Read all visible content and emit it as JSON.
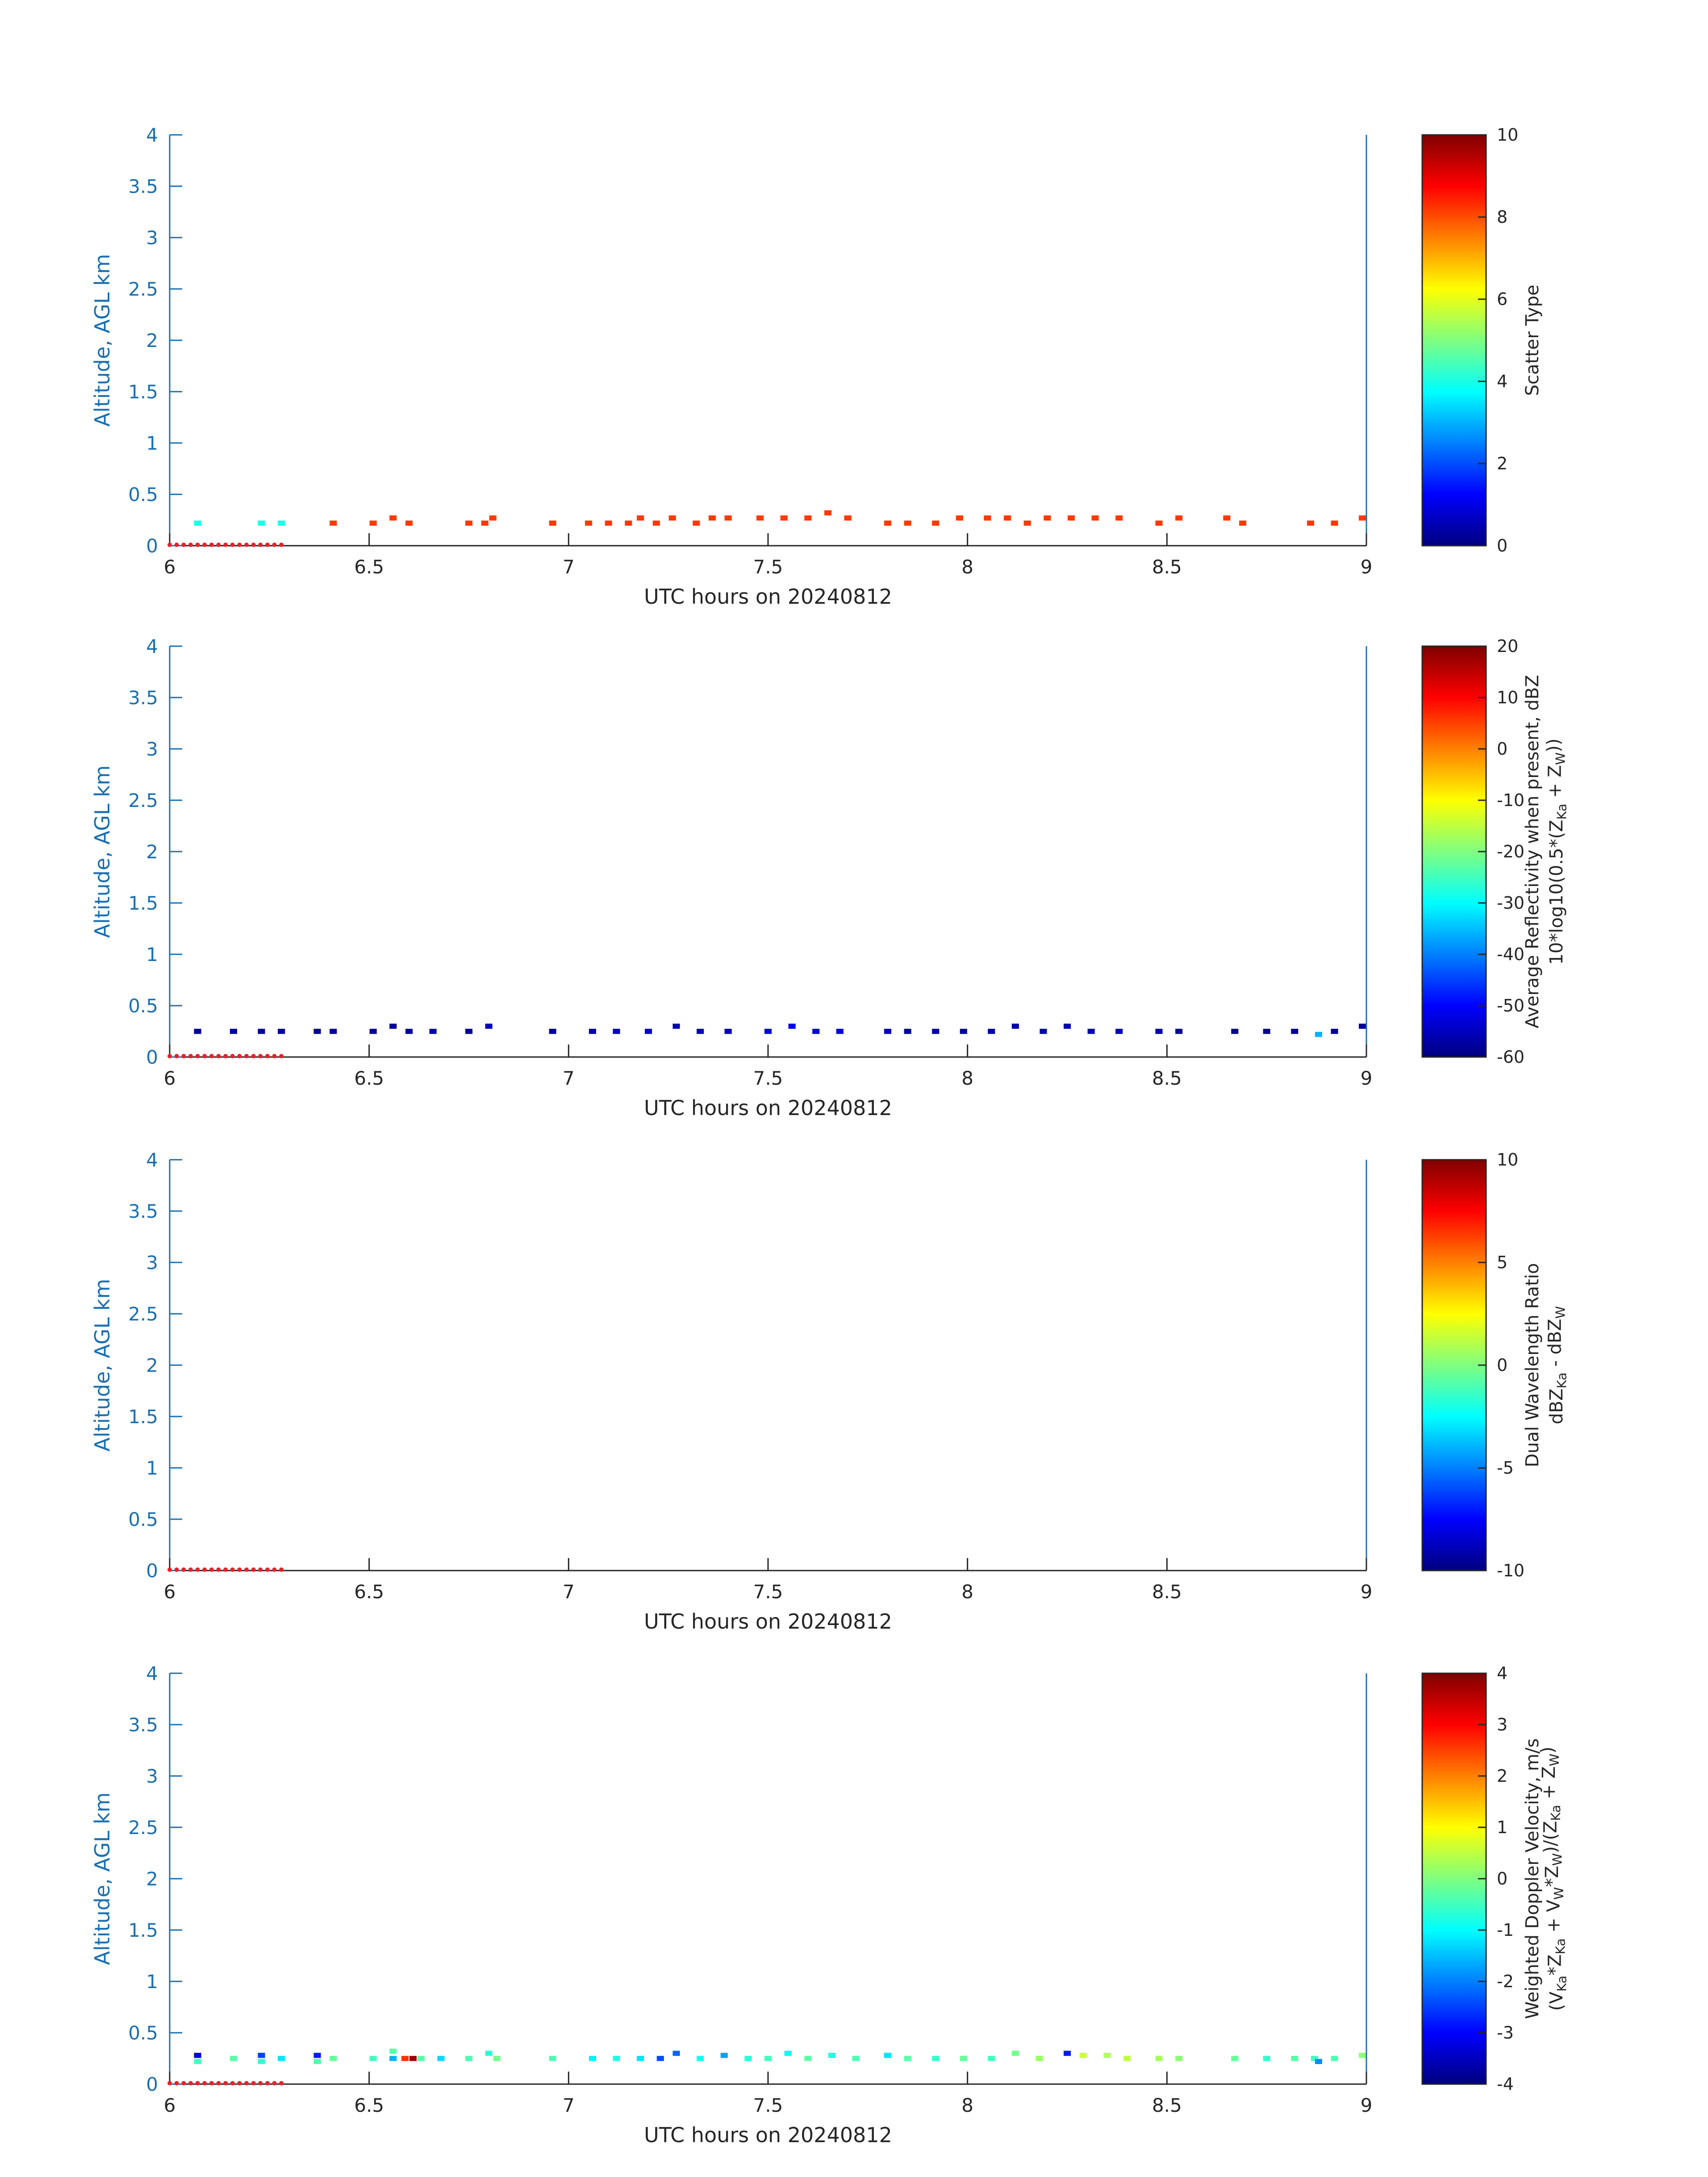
{
  "colors": {
    "y_axis": "#1a6fb0",
    "x_axis": "#262626",
    "ground_marker": "#e8212b",
    "colormap": "jet"
  },
  "chart_data": [
    {
      "type": "heatmap",
      "xlabel": "UTC hours on 20240812",
      "ylabel": "Altitude, AGL km",
      "xlim": [
        6,
        9
      ],
      "ylim": [
        0,
        4
      ],
      "xticks": [
        "6",
        "6.5",
        "7",
        "7.5",
        "8",
        "8.5",
        "9"
      ],
      "yticks": [
        "0",
        "0.5",
        "1",
        "1.5",
        "2",
        "2.5",
        "3",
        "3.5",
        "4"
      ],
      "colorbar": {
        "label_lines": [
          "Scatter Type"
        ],
        "clim": [
          0,
          10
        ],
        "ticks": [
          "0",
          "2",
          "4",
          "6",
          "8",
          "10"
        ]
      },
      "cells_note_units": "x in UTC hours, y in km, value in colorbar units",
      "cells": [
        [
          6.07,
          0.22,
          4
        ],
        [
          6.23,
          0.22,
          4
        ],
        [
          6.28,
          0.22,
          4
        ],
        [
          6.41,
          0.22,
          8.2
        ],
        [
          6.51,
          0.22,
          8.2
        ],
        [
          6.56,
          0.27,
          8.2
        ],
        [
          6.6,
          0.22,
          8.2
        ],
        [
          6.75,
          0.22,
          8.2
        ],
        [
          6.79,
          0.22,
          8.2
        ],
        [
          6.81,
          0.27,
          8.2
        ],
        [
          6.96,
          0.22,
          8.2
        ],
        [
          7.05,
          0.22,
          8.2
        ],
        [
          7.1,
          0.22,
          8.2
        ],
        [
          7.15,
          0.22,
          8.2
        ],
        [
          7.18,
          0.27,
          8.2
        ],
        [
          7.22,
          0.22,
          8.2
        ],
        [
          7.26,
          0.27,
          8.2
        ],
        [
          7.32,
          0.22,
          8.2
        ],
        [
          7.36,
          0.27,
          8.2
        ],
        [
          7.4,
          0.27,
          8.2
        ],
        [
          7.48,
          0.27,
          8.2
        ],
        [
          7.54,
          0.27,
          8.2
        ],
        [
          7.6,
          0.27,
          8.2
        ],
        [
          7.65,
          0.32,
          8.2
        ],
        [
          7.7,
          0.27,
          8.2
        ],
        [
          7.8,
          0.22,
          8.2
        ],
        [
          7.85,
          0.22,
          8.2
        ],
        [
          7.92,
          0.22,
          8.2
        ],
        [
          7.98,
          0.27,
          8.2
        ],
        [
          8.05,
          0.27,
          8.2
        ],
        [
          8.1,
          0.27,
          8.2
        ],
        [
          8.15,
          0.22,
          8.2
        ],
        [
          8.2,
          0.27,
          8.2
        ],
        [
          8.26,
          0.27,
          8.2
        ],
        [
          8.32,
          0.27,
          8.2
        ],
        [
          8.38,
          0.27,
          8.2
        ],
        [
          8.48,
          0.22,
          8.2
        ],
        [
          8.53,
          0.27,
          8.2
        ],
        [
          8.65,
          0.27,
          8.2
        ],
        [
          8.69,
          0.22,
          8.2
        ],
        [
          8.86,
          0.22,
          8.2
        ],
        [
          8.92,
          0.22,
          8.2
        ],
        [
          8.99,
          0.27,
          8.2
        ]
      ]
    },
    {
      "type": "heatmap",
      "xlabel": "UTC hours on 20240812",
      "ylabel": "Altitude, AGL km",
      "xlim": [
        6,
        9
      ],
      "ylim": [
        0,
        4
      ],
      "xticks": [
        "6",
        "6.5",
        "7",
        "7.5",
        "8",
        "8.5",
        "9"
      ],
      "yticks": [
        "0",
        "0.5",
        "1",
        "1.5",
        "2",
        "2.5",
        "3",
        "3.5",
        "4"
      ],
      "colorbar": {
        "label_lines": [
          "Average Reflectivity when present, dBZ",
          "10*log10(0.5*(Z<sub>Ka</sub> + Z<sub>W</sub>))"
        ],
        "clim": [
          -60,
          20
        ],
        "ticks": [
          "-60",
          "-50",
          "-40",
          "-30",
          "-20",
          "-10",
          "0",
          "10",
          "20"
        ]
      },
      "cells_note_units": "x in UTC hours, y in km, value in colorbar units",
      "cells": [
        [
          6.07,
          0.25,
          -58
        ],
        [
          6.16,
          0.25,
          -58
        ],
        [
          6.23,
          0.25,
          -58
        ],
        [
          6.28,
          0.25,
          -58
        ],
        [
          6.37,
          0.25,
          -58
        ],
        [
          6.41,
          0.25,
          -58
        ],
        [
          6.51,
          0.25,
          -58
        ],
        [
          6.56,
          0.3,
          -58
        ],
        [
          6.6,
          0.25,
          -58
        ],
        [
          6.66,
          0.25,
          -56
        ],
        [
          6.75,
          0.25,
          -58
        ],
        [
          6.8,
          0.3,
          -55
        ],
        [
          6.96,
          0.25,
          -58
        ],
        [
          7.06,
          0.25,
          -57
        ],
        [
          7.12,
          0.25,
          -55
        ],
        [
          7.2,
          0.25,
          -54
        ],
        [
          7.27,
          0.3,
          -56
        ],
        [
          7.33,
          0.25,
          -55
        ],
        [
          7.4,
          0.25,
          -56
        ],
        [
          7.5,
          0.25,
          -52
        ],
        [
          7.56,
          0.3,
          -51
        ],
        [
          7.62,
          0.25,
          -52
        ],
        [
          7.68,
          0.25,
          -53
        ],
        [
          7.8,
          0.25,
          -56
        ],
        [
          7.85,
          0.25,
          -57
        ],
        [
          7.92,
          0.25,
          -57
        ],
        [
          7.99,
          0.25,
          -57
        ],
        [
          8.06,
          0.25,
          -57
        ],
        [
          8.12,
          0.3,
          -57
        ],
        [
          8.19,
          0.25,
          -56
        ],
        [
          8.25,
          0.3,
          -56
        ],
        [
          8.31,
          0.25,
          -55
        ],
        [
          8.38,
          0.25,
          -56
        ],
        [
          8.48,
          0.25,
          -57
        ],
        [
          8.53,
          0.25,
          -57
        ],
        [
          8.67,
          0.25,
          -58
        ],
        [
          8.75,
          0.25,
          -58
        ],
        [
          8.82,
          0.25,
          -58
        ],
        [
          8.88,
          0.22,
          -36
        ],
        [
          8.92,
          0.25,
          -58
        ],
        [
          8.99,
          0.3,
          -58
        ]
      ]
    },
    {
      "type": "heatmap",
      "xlabel": "UTC hours on 20240812",
      "ylabel": "Altitude, AGL km",
      "xlim": [
        6,
        9
      ],
      "ylim": [
        0,
        4
      ],
      "xticks": [
        "6",
        "6.5",
        "7",
        "7.5",
        "8",
        "8.5",
        "9"
      ],
      "yticks": [
        "0",
        "0.5",
        "1",
        "1.5",
        "2",
        "2.5",
        "3",
        "3.5",
        "4"
      ],
      "colorbar": {
        "label_lines": [
          "Dual Wavelength Ratio",
          "dBZ<sub>Ka</sub> - dBZ<sub>W</sub>"
        ],
        "clim": [
          -10,
          10
        ],
        "ticks": [
          "-10",
          "-5",
          "0",
          "5",
          "10"
        ]
      },
      "cells_note_units": "x in UTC hours, y in km, value in colorbar units",
      "cells": []
    },
    {
      "type": "heatmap",
      "xlabel": "UTC hours on 20240812",
      "ylabel": "Altitude, AGL km",
      "xlim": [
        6,
        9
      ],
      "ylim": [
        0,
        4
      ],
      "xticks": [
        "6",
        "6.5",
        "7",
        "7.5",
        "8",
        "8.5",
        "9"
      ],
      "yticks": [
        "0",
        "0.5",
        "1",
        "1.5",
        "2",
        "2.5",
        "3",
        "3.5",
        "4"
      ],
      "colorbar": {
        "label_lines": [
          "Weighted Doppler Velocity, m/s",
          "(V<sub>Ka</sub>*Z<sub>Ka</sub> + V<sub>W</sub>*Z<sub>W</sub>)/(Z<sub>Ka</sub> + Z<sub>W</sub>)"
        ],
        "clim": [
          -4,
          4
        ],
        "ticks": [
          "-4",
          "-3",
          "-2",
          "-1",
          "0",
          "1",
          "2",
          "3",
          "4"
        ]
      },
      "cells_note_units": "x in UTC hours, y in km, value in colorbar units",
      "cells": [
        [
          6.07,
          0.28,
          -3.3
        ],
        [
          6.07,
          0.22,
          -0.5
        ],
        [
          6.16,
          0.25,
          -0.3
        ],
        [
          6.23,
          0.28,
          -2.5
        ],
        [
          6.23,
          0.22,
          -0.6
        ],
        [
          6.28,
          0.25,
          -1.2
        ],
        [
          6.37,
          0.28,
          -2.8
        ],
        [
          6.37,
          0.22,
          -0.4
        ],
        [
          6.41,
          0.25,
          -0.2
        ],
        [
          6.51,
          0.25,
          -0.5
        ],
        [
          6.56,
          0.32,
          -0.3
        ],
        [
          6.56,
          0.25,
          -1.6
        ],
        [
          6.59,
          0.25,
          2.6
        ],
        [
          6.61,
          0.25,
          3.8
        ],
        [
          6.63,
          0.25,
          -0.3
        ],
        [
          6.68,
          0.25,
          -1.3
        ],
        [
          6.75,
          0.25,
          -0.4
        ],
        [
          6.8,
          0.3,
          -0.7
        ],
        [
          6.82,
          0.25,
          -0.1
        ],
        [
          6.96,
          0.25,
          -0.4
        ],
        [
          7.06,
          0.25,
          -1.1
        ],
        [
          7.12,
          0.25,
          -0.8
        ],
        [
          7.18,
          0.25,
          -1.2
        ],
        [
          7.23,
          0.25,
          -2.4
        ],
        [
          7.27,
          0.3,
          -2.2
        ],
        [
          7.33,
          0.25,
          -0.9
        ],
        [
          7.39,
          0.28,
          -1.7
        ],
        [
          7.45,
          0.25,
          -0.7
        ],
        [
          7.5,
          0.25,
          -0.5
        ],
        [
          7.55,
          0.3,
          -1.0
        ],
        [
          7.6,
          0.25,
          -0.3
        ],
        [
          7.66,
          0.28,
          -0.8
        ],
        [
          7.72,
          0.25,
          -0.4
        ],
        [
          7.8,
          0.28,
          -1.2
        ],
        [
          7.85,
          0.25,
          -0.3
        ],
        [
          7.92,
          0.25,
          -0.6
        ],
        [
          7.99,
          0.25,
          -0.2
        ],
        [
          8.06,
          0.25,
          -0.5
        ],
        [
          8.12,
          0.3,
          -0.1
        ],
        [
          8.18,
          0.25,
          0.2
        ],
        [
          8.25,
          0.3,
          -2.8
        ],
        [
          8.29,
          0.28,
          0.6
        ],
        [
          8.35,
          0.28,
          0.4
        ],
        [
          8.4,
          0.25,
          0.5
        ],
        [
          8.48,
          0.25,
          0.3
        ],
        [
          8.53,
          0.25,
          0.1
        ],
        [
          8.67,
          0.25,
          -0.2
        ],
        [
          8.75,
          0.25,
          -0.6
        ],
        [
          8.82,
          0.25,
          -0.3
        ],
        [
          8.87,
          0.25,
          -0.5
        ],
        [
          8.88,
          0.22,
          -1.9
        ],
        [
          8.92,
          0.25,
          -0.4
        ],
        [
          8.99,
          0.28,
          0.1
        ]
      ]
    }
  ],
  "ground_markers": {
    "x_range": [
      6,
      6.28
    ],
    "count": 17
  }
}
